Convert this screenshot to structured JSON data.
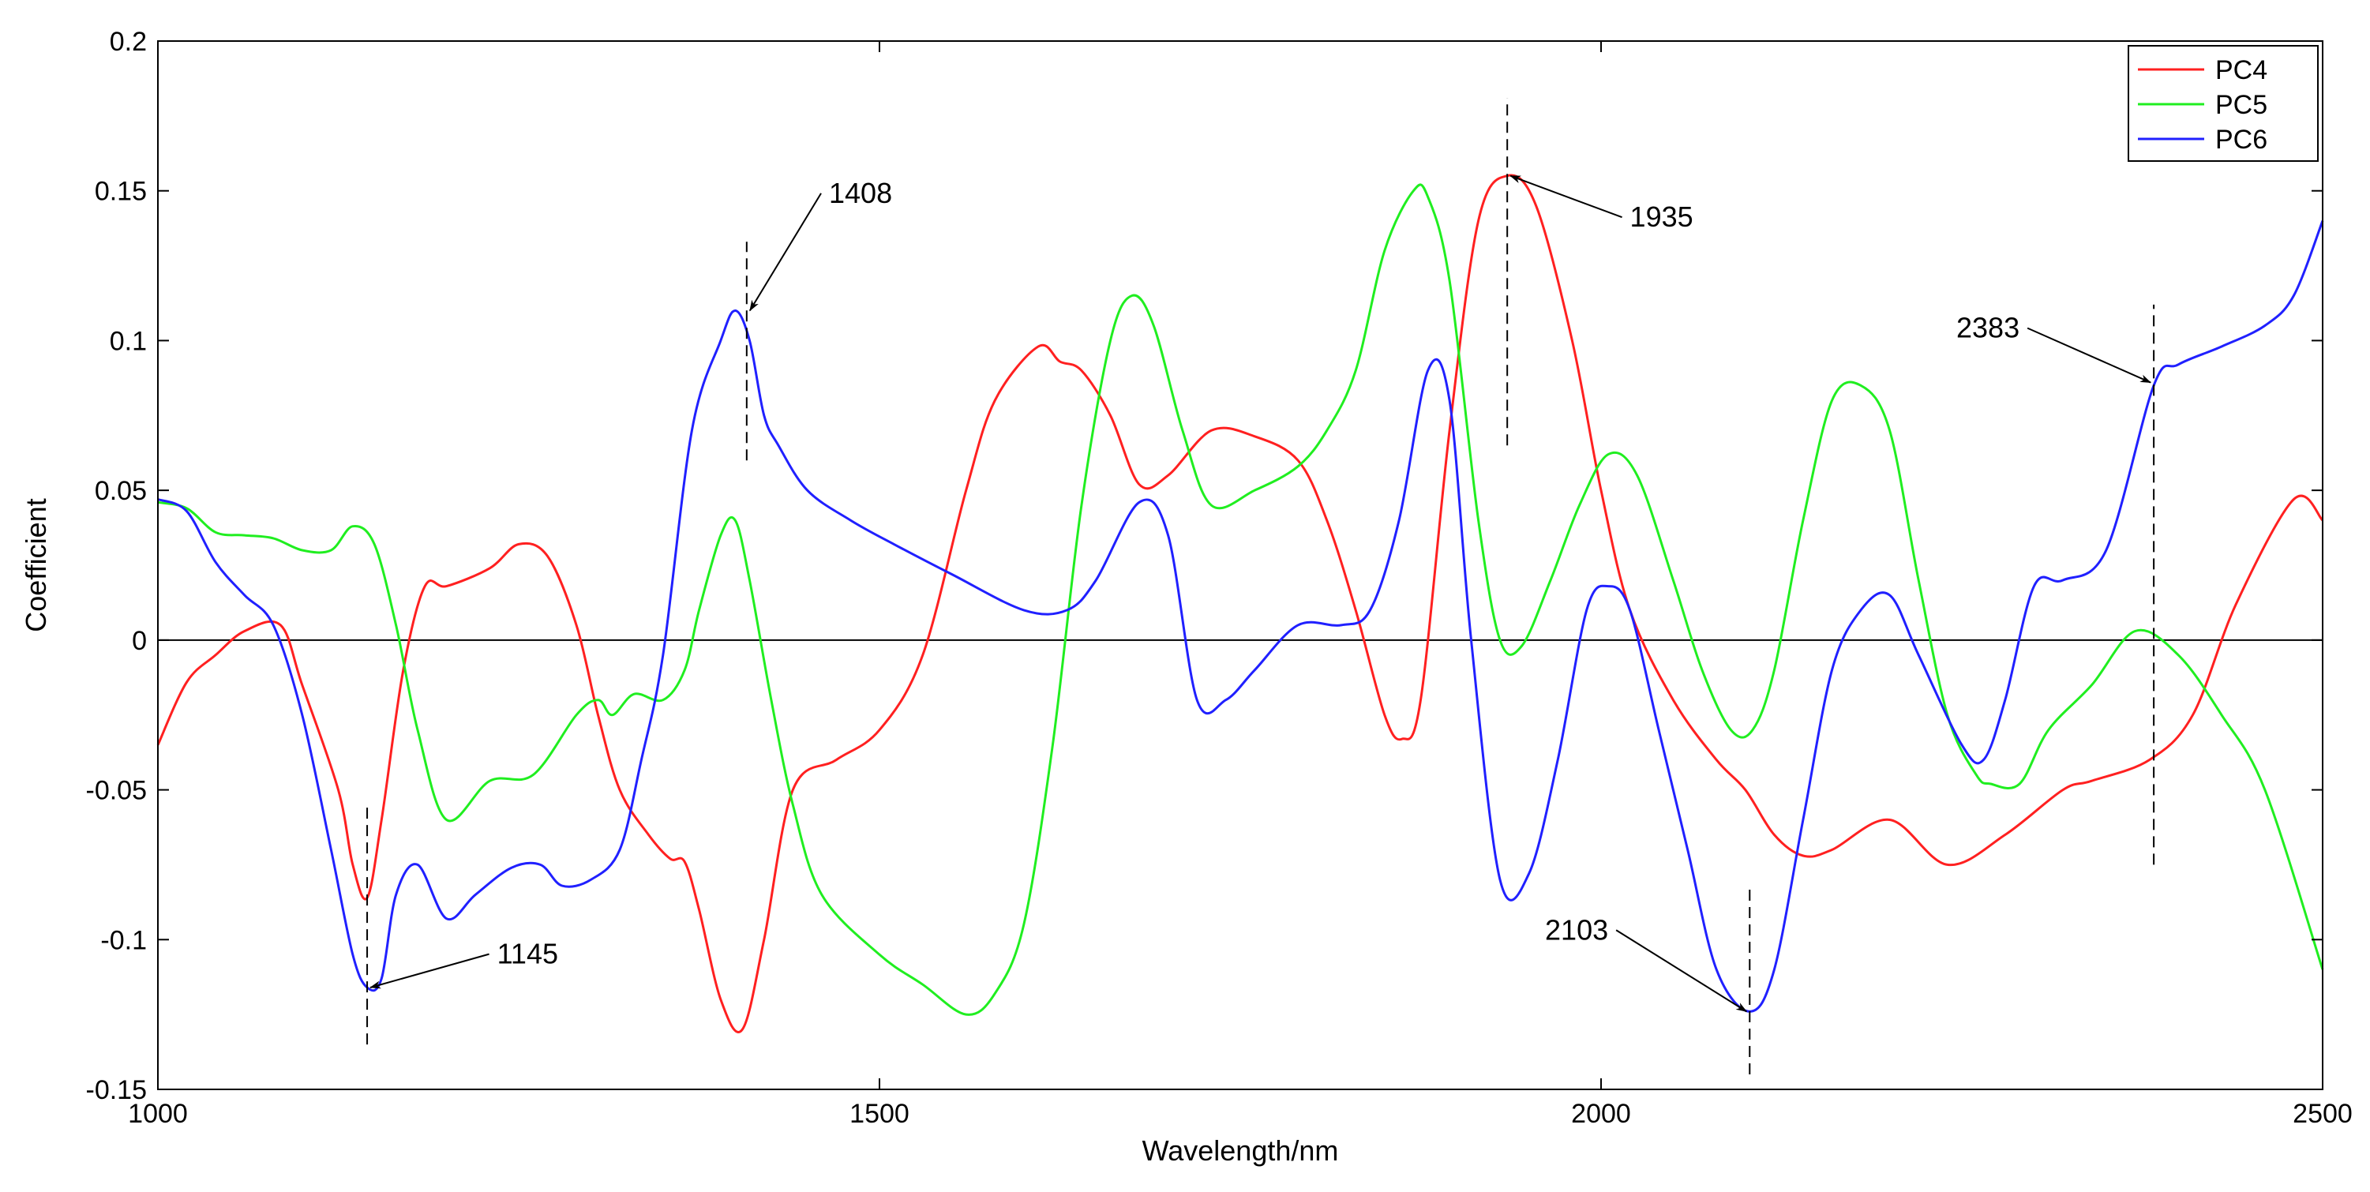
{
  "chart_data": {
    "type": "line",
    "title": "",
    "xlabel": "Wavelength/nm",
    "ylabel": "Coefficient",
    "xlim": [
      1000,
      2500
    ],
    "ylim": [
      -0.15,
      0.2
    ],
    "xticks": [
      1000,
      1500,
      2000,
      2500
    ],
    "xtick_labels": [
      "1000",
      "1500",
      "2000",
      "2500"
    ],
    "yticks": [
      -0.15,
      -0.1,
      -0.05,
      0,
      0.05,
      0.1,
      0.15,
      0.2
    ],
    "ytick_labels": [
      "-0.15",
      "-0.1",
      "-0.05",
      "0",
      "0.05",
      "0.1",
      "0.15",
      "0.2"
    ],
    "grid": false,
    "legend_position": "top-right",
    "series": [
      {
        "name": "PC4",
        "color": "#ff2020",
        "x": [
          1000,
          1020,
          1040,
          1060,
          1085,
          1100,
          1125,
          1135,
          1145,
          1155,
          1170,
          1185,
          1200,
          1230,
          1250,
          1270,
          1290,
          1305,
          1320,
          1340,
          1355,
          1365,
          1375,
          1390,
          1405,
          1420,
          1440,
          1470,
          1500,
          1530,
          1560,
          1580,
          1610,
          1625,
          1640,
          1660,
          1680,
          1700,
          1730,
          1760,
          1790,
          1810,
          1830,
          1850,
          1862,
          1875,
          1895,
          1915,
          1935,
          1955,
          1980,
          2000,
          2020,
          2050,
          2080,
          2100,
          2120,
          2140,
          2160,
          2200,
          2240,
          2280,
          2320,
          2340,
          2380,
          2410,
          2440,
          2480,
          2500
        ],
        "y": [
          -0.035,
          -0.014,
          -0.005,
          0.003,
          0.005,
          -0.015,
          -0.05,
          -0.075,
          -0.086,
          -0.06,
          -0.01,
          0.018,
          0.018,
          0.024,
          0.032,
          0.028,
          0.005,
          -0.025,
          -0.05,
          -0.065,
          -0.073,
          -0.074,
          -0.09,
          -0.12,
          -0.13,
          -0.1,
          -0.05,
          -0.04,
          -0.03,
          -0.005,
          0.05,
          0.08,
          0.098,
          0.093,
          0.09,
          0.075,
          0.052,
          0.055,
          0.07,
          0.068,
          0.06,
          0.04,
          0.01,
          -0.025,
          -0.033,
          -0.02,
          0.07,
          0.14,
          0.155,
          0.145,
          0.1,
          0.05,
          0.01,
          -0.02,
          -0.04,
          -0.05,
          -0.065,
          -0.072,
          -0.07,
          -0.06,
          -0.075,
          -0.065,
          -0.05,
          -0.047,
          -0.04,
          -0.025,
          0.012,
          0.047,
          0.04
        ]
      },
      {
        "name": "PC5",
        "color": "#20ee20",
        "x": [
          1000,
          1020,
          1040,
          1060,
          1080,
          1100,
          1120,
          1135,
          1150,
          1165,
          1180,
          1200,
          1230,
          1260,
          1290,
          1305,
          1315,
          1330,
          1350,
          1365,
          1375,
          1390,
          1400,
          1410,
          1425,
          1440,
          1460,
          1500,
          1530,
          1560,
          1580,
          1600,
          1620,
          1640,
          1660,
          1675,
          1690,
          1710,
          1730,
          1760,
          1790,
          1810,
          1830,
          1850,
          1870,
          1880,
          1895,
          1915,
          1930,
          1945,
          1965,
          1985,
          2005,
          2025,
          2050,
          2070,
          2090,
          2105,
          2120,
          2140,
          2160,
          2180,
          2200,
          2220,
          2240,
          2260,
          2270,
          2290,
          2310,
          2340,
          2370,
          2400,
          2430,
          2460,
          2500
        ],
        "y": [
          0.046,
          0.044,
          0.036,
          0.035,
          0.034,
          0.03,
          0.03,
          0.038,
          0.032,
          0.005,
          -0.03,
          -0.06,
          -0.047,
          -0.045,
          -0.025,
          -0.02,
          -0.025,
          -0.018,
          -0.02,
          -0.01,
          0.01,
          0.035,
          0.04,
          0.02,
          -0.02,
          -0.055,
          -0.085,
          -0.105,
          -0.115,
          -0.125,
          -0.118,
          -0.095,
          -0.035,
          0.045,
          0.1,
          0.115,
          0.105,
          0.07,
          0.045,
          0.05,
          0.058,
          0.07,
          0.09,
          0.13,
          0.15,
          0.148,
          0.12,
          0.04,
          0.0,
          -0.002,
          0.02,
          0.045,
          0.062,
          0.055,
          0.02,
          -0.01,
          -0.03,
          -0.03,
          -0.01,
          0.04,
          0.08,
          0.085,
          0.07,
          0.02,
          -0.025,
          -0.045,
          -0.048,
          -0.048,
          -0.03,
          -0.015,
          0.003,
          -0.005,
          -0.025,
          -0.05,
          -0.11
        ]
      },
      {
        "name": "PC6",
        "color": "#2020ff",
        "x": [
          1000,
          1020,
          1040,
          1060,
          1080,
          1100,
          1120,
          1135,
          1145,
          1155,
          1165,
          1180,
          1200,
          1220,
          1245,
          1265,
          1280,
          1300,
          1320,
          1335,
          1350,
          1370,
          1390,
          1400,
          1410,
          1420,
          1430,
          1450,
          1480,
          1510,
          1550,
          1600,
          1630,
          1650,
          1680,
          1700,
          1720,
          1740,
          1760,
          1790,
          1820,
          1840,
          1860,
          1880,
          1895,
          1910,
          1930,
          1950,
          1970,
          1990,
          2005,
          2020,
          2040,
          2060,
          2080,
          2103,
          2120,
          2140,
          2160,
          2180,
          2200,
          2220,
          2250,
          2265,
          2280,
          2300,
          2320,
          2350,
          2383,
          2400,
          2430,
          2460,
          2480,
          2500
        ],
        "y": [
          0.047,
          0.043,
          0.026,
          0.015,
          0.005,
          -0.025,
          -0.07,
          -0.105,
          -0.116,
          -0.113,
          -0.085,
          -0.075,
          -0.093,
          -0.085,
          -0.076,
          -0.075,
          -0.082,
          -0.08,
          -0.07,
          -0.04,
          -0.005,
          0.07,
          0.1,
          0.11,
          0.1,
          0.075,
          0.065,
          0.05,
          0.04,
          0.032,
          0.022,
          0.01,
          0.01,
          0.02,
          0.046,
          0.035,
          -0.02,
          -0.02,
          -0.01,
          0.005,
          0.005,
          0.01,
          0.04,
          0.09,
          0.08,
          0.0,
          -0.08,
          -0.078,
          -0.04,
          0.01,
          0.018,
          0.01,
          -0.03,
          -0.07,
          -0.11,
          -0.124,
          -0.11,
          -0.06,
          -0.01,
          0.01,
          0.015,
          -0.005,
          -0.035,
          -0.04,
          -0.02,
          0.018,
          0.02,
          0.03,
          0.085,
          0.092,
          0.098,
          0.105,
          0.115,
          0.14
        ]
      }
    ],
    "annotations": [
      {
        "text": "1145",
        "x": 1145,
        "y": -0.116,
        "marker_ymin": -0.135,
        "marker_ymax": -0.055,
        "text_x": 1235,
        "text_y": -0.108,
        "text_anchor": "start"
      },
      {
        "text": "1408",
        "x": 1408,
        "y": 0.11,
        "marker_ymin": 0.06,
        "marker_ymax": 0.133,
        "text_x": 1465,
        "text_y": 0.146,
        "text_anchor": "start"
      },
      {
        "text": "1935",
        "x": 1935,
        "y": 0.155,
        "marker_ymin": 0.065,
        "marker_ymax": 0.181,
        "text_x": 2020,
        "text_y": 0.138,
        "text_anchor": "start"
      },
      {
        "text": "2103",
        "x": 2103,
        "y": -0.124,
        "marker_ymin": -0.145,
        "marker_ymax": -0.082,
        "text_x": 2005,
        "text_y": -0.1,
        "text_anchor": "end"
      },
      {
        "text": "2383",
        "x": 2383,
        "y": 0.086,
        "marker_ymin": -0.075,
        "marker_ymax": 0.112,
        "text_x": 2290,
        "text_y": 0.101,
        "text_anchor": "end"
      }
    ]
  }
}
